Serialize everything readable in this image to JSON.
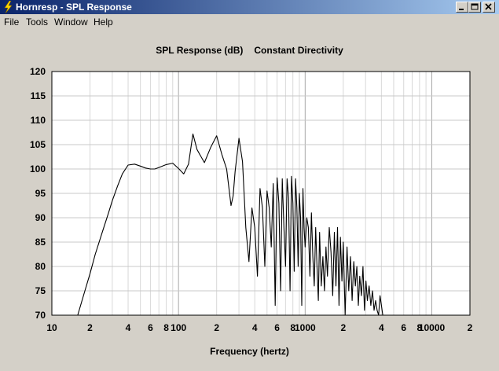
{
  "window": {
    "title": "Hornresp - SPL Response",
    "icon": "lightning-icon",
    "controls": [
      "minimize-icon",
      "maximize-icon",
      "close-icon"
    ]
  },
  "menu": [
    {
      "label": "File"
    },
    {
      "label": "Tools"
    },
    {
      "label": "Window"
    },
    {
      "label": "Help"
    }
  ],
  "chart": {
    "title": "SPL Response (dB)",
    "subtitle": "Constant Directivity",
    "xlabel": "Frequency (hertz)"
  },
  "chart_data": {
    "type": "line",
    "title": "SPL Response (dB)   Constant Directivity",
    "xlabel": "Frequency (hertz)",
    "ylabel": "",
    "x_scale": "log",
    "xlim": [
      10,
      20000
    ],
    "ylim": [
      70,
      120
    ],
    "grid": true,
    "x_tick_labels": [
      "10",
      "2",
      "4",
      "6",
      "8",
      "100",
      "2",
      "4",
      "6",
      "8",
      "1000",
      "2",
      "4",
      "6",
      "8",
      "10000",
      "2"
    ],
    "y_tick_labels": [
      "120",
      "115",
      "110",
      "105",
      "100",
      "95",
      "90",
      "85",
      "80",
      "75",
      "70"
    ],
    "series": [
      {
        "x": [
          16,
          18,
          20,
          22,
          25,
          28,
          30,
          33,
          36,
          40,
          45,
          50,
          55,
          60,
          65,
          70,
          80,
          90,
          100,
          110,
          120,
          130,
          140,
          160,
          180,
          200,
          220,
          240,
          260,
          270,
          280,
          300,
          320,
          340,
          360,
          380,
          400,
          420,
          440,
          460,
          480,
          500,
          520,
          540,
          560,
          580,
          600,
          620,
          640,
          660,
          680,
          700,
          720,
          740,
          760,
          780,
          800,
          820,
          840,
          860,
          880,
          900,
          920,
          940,
          960,
          980,
          1000,
          1030,
          1060,
          1090,
          1120,
          1150,
          1180,
          1210,
          1240,
          1270,
          1300,
          1340,
          1380,
          1420,
          1460,
          1500,
          1550,
          1600,
          1650,
          1700,
          1750,
          1800,
          1850,
          1900,
          1950,
          2000,
          2070,
          2140,
          2210,
          2280,
          2350,
          2420,
          2490,
          2560,
          2630,
          2700,
          2780,
          2860,
          2940,
          3020,
          3100,
          3200,
          3300,
          3400,
          3500,
          3600,
          3700,
          3800,
          3900,
          4000,
          4100,
          4200
        ],
        "y": [
          70,
          74.5,
          78.5,
          82.5,
          87,
          91,
          93.5,
          96.5,
          99,
          100.8,
          101,
          100.6,
          100.2,
          100,
          100,
          100.3,
          100.9,
          101.2,
          100.1,
          99,
          101,
          107.2,
          104,
          101.3,
          104.5,
          106.8,
          103,
          100,
          92.5,
          94.5,
          99.5,
          106.3,
          101.5,
          88,
          81,
          92,
          88,
          78,
          96,
          92,
          80,
          95.5,
          92,
          84,
          97,
          72,
          98.2,
          93,
          75,
          98,
          88,
          80,
          98,
          94,
          75,
          98.5,
          93,
          79,
          98,
          92,
          80,
          95,
          90,
          72,
          96,
          88,
          84,
          90,
          88,
          78,
          91,
          82,
          76,
          88,
          80,
          73,
          87,
          76,
          82,
          75,
          84,
          78,
          88,
          83,
          74,
          87,
          76,
          88,
          72,
          86,
          77,
          85,
          70,
          84,
          75,
          82,
          73,
          81,
          76,
          80,
          72,
          78,
          74,
          80,
          71,
          77,
          73,
          76,
          72,
          75,
          71,
          73,
          71,
          70,
          74,
          72,
          70,
          70
        ]
      }
    ]
  }
}
